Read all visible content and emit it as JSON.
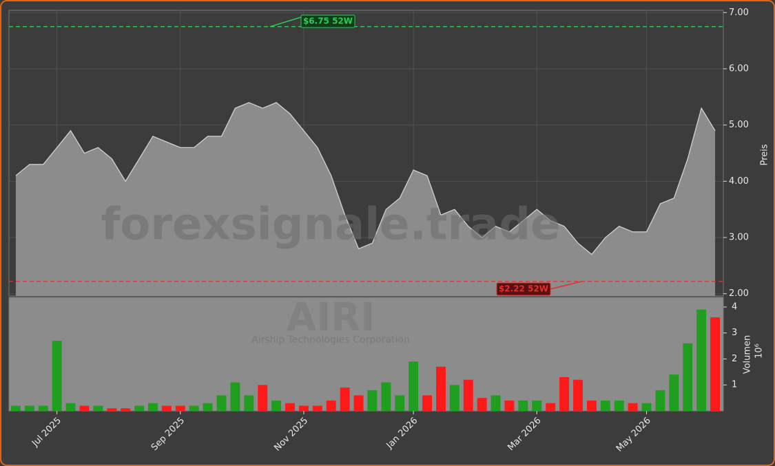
{
  "chart_data": {
    "type": "stock",
    "watermark": "forexsignale.trade",
    "ticker": "AIRI",
    "company": "Airship Technologies Corporation",
    "y_label": "Preis",
    "y2_label": "Volumen",
    "y2_unit": "10⁶",
    "categories": [
      null,
      null,
      null,
      "Jul 2025",
      null,
      null,
      null,
      null,
      null,
      null,
      null,
      null,
      "Sep 2025",
      null,
      null,
      null,
      null,
      null,
      null,
      null,
      null,
      "Nov 2025",
      null,
      null,
      null,
      null,
      null,
      null,
      null,
      "Jan 2026",
      null,
      null,
      null,
      null,
      null,
      null,
      null,
      null,
      "Mar 2026",
      null,
      null,
      null,
      null,
      null,
      null,
      null,
      "May 2026",
      null,
      null,
      null,
      null,
      null
    ],
    "series": [
      {
        "name": "Preis",
        "color": "#8c8c8c",
        "values": [
          4.1,
          4.3,
          4.3,
          4.6,
          4.9,
          4.5,
          4.6,
          4.4,
          4.0,
          4.4,
          4.8,
          4.7,
          4.6,
          4.6,
          4.8,
          4.8,
          5.3,
          5.4,
          5.3,
          5.4,
          5.2,
          4.9,
          4.6,
          4.1,
          3.4,
          2.8,
          2.9,
          3.5,
          3.7,
          4.2,
          4.1,
          3.4,
          3.5,
          3.2,
          3.0,
          3.2,
          3.1,
          3.3,
          3.5,
          3.3,
          3.2,
          2.9,
          2.7,
          3.0,
          3.2,
          3.1,
          3.1,
          3.6,
          3.7,
          4.4,
          5.3,
          4.9
        ]
      },
      {
        "name": "Volumen",
        "axis": "y2",
        "up_color": "#1f9e1f",
        "down_color": "#ff1a1a",
        "values": [
          0.2,
          0.2,
          0.2,
          2.7,
          0.3,
          0.2,
          0.2,
          0.1,
          0.1,
          0.2,
          0.3,
          0.2,
          0.2,
          0.2,
          0.3,
          0.6,
          1.1,
          0.6,
          1.0,
          0.4,
          0.3,
          0.2,
          0.2,
          0.4,
          0.9,
          0.6,
          0.8,
          1.1,
          0.6,
          1.9,
          0.6,
          1.7,
          1.0,
          1.2,
          0.5,
          0.6,
          0.4,
          0.4,
          0.4,
          0.3,
          1.3,
          1.2,
          0.4,
          0.4,
          0.4,
          0.3,
          0.3,
          0.8,
          1.4,
          2.6,
          3.9,
          3.6
        ]
      }
    ],
    "ylim": [
      1.96,
      7.04
    ],
    "yticks": [
      {
        "value": 2,
        "label": "2.00"
      },
      {
        "value": 3,
        "label": "3.00"
      },
      {
        "value": 4,
        "label": "4.00"
      },
      {
        "value": 5,
        "label": "5.00"
      },
      {
        "value": 6,
        "label": "6.00"
      },
      {
        "value": 7,
        "label": "7.00"
      }
    ],
    "y2lim": [
      0,
      4.37
    ],
    "y2ticks": [
      1,
      2,
      3,
      4
    ],
    "high": {
      "value": 6.75,
      "label": "$6.75 52W",
      "color": "#2ecc55"
    },
    "low": {
      "value": 2.22,
      "label": "$2.22 52W",
      "color": "#e03030"
    },
    "grid": true
  }
}
